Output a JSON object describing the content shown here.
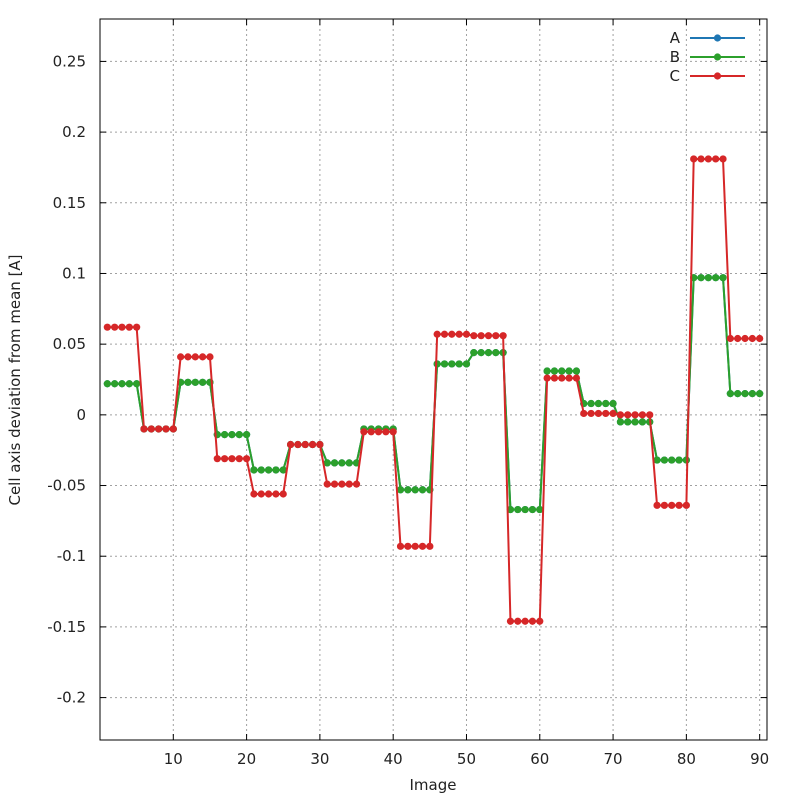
{
  "chart_data": {
    "type": "line",
    "xlabel": "Image",
    "ylabel": "Cell axis deviation from mean [A]",
    "xlim": [
      0,
      91
    ],
    "ylim": [
      -0.23,
      0.28
    ],
    "xticks": [
      10,
      20,
      30,
      40,
      50,
      60,
      70,
      80,
      90
    ],
    "yticks": [
      -0.2,
      -0.15,
      -0.1,
      -0.05,
      0,
      0.05,
      0.1,
      0.15,
      0.2,
      0.25
    ],
    "ytick_labels": [
      "-0.2",
      "-0.15",
      "-0.1",
      "-0.05",
      "0",
      "0.05",
      "0.1",
      "0.15",
      "0.2",
      "0.25"
    ],
    "grid": true,
    "legend_position": "top-right",
    "x": [
      1,
      2,
      3,
      4,
      5,
      6,
      7,
      8,
      9,
      10,
      11,
      12,
      13,
      14,
      15,
      16,
      17,
      18,
      19,
      20,
      21,
      22,
      23,
      24,
      25,
      26,
      27,
      28,
      29,
      30,
      31,
      32,
      33,
      34,
      35,
      36,
      37,
      38,
      39,
      40,
      41,
      42,
      43,
      44,
      45,
      46,
      47,
      48,
      49,
      50,
      51,
      52,
      53,
      54,
      55,
      56,
      57,
      58,
      59,
      60,
      61,
      62,
      63,
      64,
      65,
      66,
      67,
      68,
      69,
      70,
      71,
      72,
      73,
      74,
      75,
      76,
      77,
      78,
      79,
      80,
      81,
      82,
      83,
      84,
      85,
      86,
      87,
      88,
      89,
      90
    ],
    "series": [
      {
        "name": "A",
        "color": "#1f77b4",
        "values": [
          0.022,
          0.022,
          0.022,
          0.022,
          0.022,
          -0.01,
          -0.01,
          -0.01,
          -0.01,
          -0.01,
          0.023,
          0.023,
          0.023,
          0.023,
          0.023,
          -0.014,
          -0.014,
          -0.014,
          -0.014,
          -0.014,
          -0.039,
          -0.039,
          -0.039,
          -0.039,
          -0.039,
          -0.021,
          -0.021,
          -0.021,
          -0.021,
          -0.021,
          -0.034,
          -0.034,
          -0.034,
          -0.034,
          -0.034,
          -0.01,
          -0.01,
          -0.01,
          -0.01,
          -0.01,
          -0.053,
          -0.053,
          -0.053,
          -0.053,
          -0.053,
          0.036,
          0.036,
          0.036,
          0.036,
          0.036,
          0.044,
          0.044,
          0.044,
          0.044,
          0.044,
          -0.067,
          -0.067,
          -0.067,
          -0.067,
          -0.067,
          0.031,
          0.031,
          0.031,
          0.031,
          0.031,
          0.008,
          0.008,
          0.008,
          0.008,
          0.008,
          -0.005,
          -0.005,
          -0.005,
          -0.005,
          -0.005,
          -0.032,
          -0.032,
          -0.032,
          -0.032,
          -0.032,
          0.097,
          0.097,
          0.097,
          0.097,
          0.097,
          0.015,
          0.015,
          0.015,
          0.015,
          0.015
        ]
      },
      {
        "name": "B",
        "color": "#2ca02c",
        "values": [
          0.022,
          0.022,
          0.022,
          0.022,
          0.022,
          -0.01,
          -0.01,
          -0.01,
          -0.01,
          -0.01,
          0.023,
          0.023,
          0.023,
          0.023,
          0.023,
          -0.014,
          -0.014,
          -0.014,
          -0.014,
          -0.014,
          -0.039,
          -0.039,
          -0.039,
          -0.039,
          -0.039,
          -0.021,
          -0.021,
          -0.021,
          -0.021,
          -0.021,
          -0.034,
          -0.034,
          -0.034,
          -0.034,
          -0.034,
          -0.01,
          -0.01,
          -0.01,
          -0.01,
          -0.01,
          -0.053,
          -0.053,
          -0.053,
          -0.053,
          -0.053,
          0.036,
          0.036,
          0.036,
          0.036,
          0.036,
          0.044,
          0.044,
          0.044,
          0.044,
          0.044,
          -0.067,
          -0.067,
          -0.067,
          -0.067,
          -0.067,
          0.031,
          0.031,
          0.031,
          0.031,
          0.031,
          0.008,
          0.008,
          0.008,
          0.008,
          0.008,
          -0.005,
          -0.005,
          -0.005,
          -0.005,
          -0.005,
          -0.032,
          -0.032,
          -0.032,
          -0.032,
          -0.032,
          0.097,
          0.097,
          0.097,
          0.097,
          0.097,
          0.015,
          0.015,
          0.015,
          0.015,
          0.015
        ]
      },
      {
        "name": "C",
        "color": "#d62728",
        "values": [
          0.062,
          0.062,
          0.062,
          0.062,
          0.062,
          -0.01,
          -0.01,
          -0.01,
          -0.01,
          -0.01,
          0.041,
          0.041,
          0.041,
          0.041,
          0.041,
          -0.031,
          -0.031,
          -0.031,
          -0.031,
          -0.031,
          -0.056,
          -0.056,
          -0.056,
          -0.056,
          -0.056,
          -0.021,
          -0.021,
          -0.021,
          -0.021,
          -0.021,
          -0.049,
          -0.049,
          -0.049,
          -0.049,
          -0.049,
          -0.012,
          -0.012,
          -0.012,
          -0.012,
          -0.012,
          -0.093,
          -0.093,
          -0.093,
          -0.093,
          -0.093,
          0.057,
          0.057,
          0.057,
          0.057,
          0.057,
          0.056,
          0.056,
          0.056,
          0.056,
          0.056,
          -0.146,
          -0.146,
          -0.146,
          -0.146,
          -0.146,
          0.026,
          0.026,
          0.026,
          0.026,
          0.026,
          0.001,
          0.001,
          0.001,
          0.001,
          0.001,
          0,
          0,
          0,
          0,
          0,
          -0.064,
          -0.064,
          -0.064,
          -0.064,
          -0.064,
          0.181,
          0.181,
          0.181,
          0.181,
          0.181,
          0.054,
          0.054,
          0.054,
          0.054,
          0.054
        ]
      }
    ]
  }
}
